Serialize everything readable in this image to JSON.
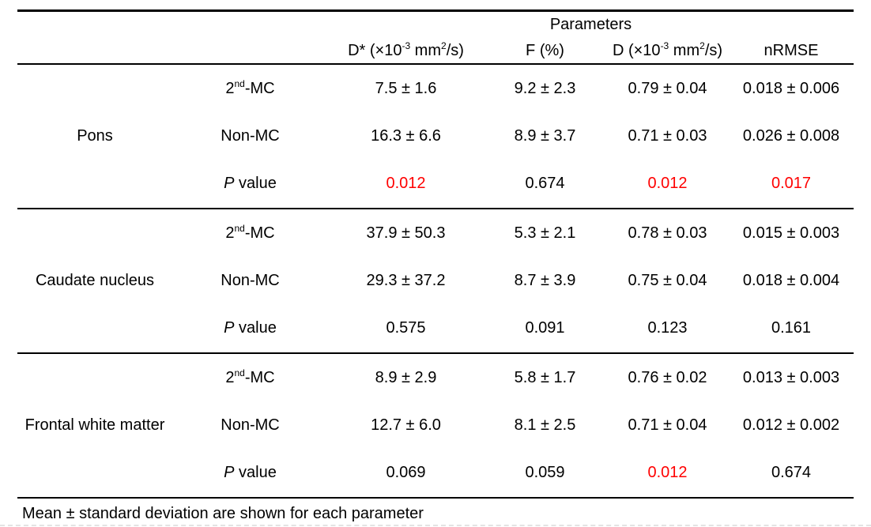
{
  "table": {
    "header": {
      "group_label": "Parameters",
      "columns": [
        {
          "pre": "D* (×10",
          "sup1": "-3",
          "mid": " mm",
          "sup2": "2",
          "post": "/s)"
        },
        {
          "label": "F (%)"
        },
        {
          "pre": "D (×10",
          "sup1": "-3",
          "mid": " mm",
          "sup2": "2",
          "post": "/s)"
        },
        {
          "label": "nRMSE"
        }
      ]
    },
    "groups": [
      {
        "region": "Pons",
        "rows": [
          {
            "label": {
              "base": "2",
              "sup": "nd",
              "post": "-MC"
            },
            "values": [
              "7.5 ± 1.6",
              "9.2 ± 2.3",
              "0.79 ± 0.04",
              "0.018 ± 0.006"
            ],
            "colors": [
              null,
              null,
              null,
              null
            ]
          },
          {
            "label": {
              "base": "Non-MC"
            },
            "values": [
              "16.3 ± 6.6",
              "8.9 ± 3.7",
              "0.71 ± 0.03",
              "0.026 ± 0.008"
            ],
            "colors": [
              null,
              null,
              null,
              null
            ]
          },
          {
            "label": {
              "italic": "P",
              "rest": " value"
            },
            "values": [
              "0.012",
              "0.674",
              "0.012",
              "0.017"
            ],
            "colors": [
              "#ff0000",
              null,
              "#ff0000",
              "#ff0000"
            ]
          }
        ]
      },
      {
        "region": "Caudate nucleus",
        "rows": [
          {
            "label": {
              "base": "2",
              "sup": "nd",
              "post": "-MC"
            },
            "values": [
              "37.9 ± 50.3",
              "5.3 ± 2.1",
              "0.78 ± 0.03",
              "0.015 ± 0.003"
            ],
            "colors": [
              null,
              null,
              null,
              null
            ]
          },
          {
            "label": {
              "base": "Non-MC"
            },
            "values": [
              "29.3 ± 37.2",
              "8.7 ± 3.9",
              "0.75 ± 0.04",
              "0.018 ± 0.004"
            ],
            "colors": [
              null,
              null,
              null,
              null
            ]
          },
          {
            "label": {
              "italic": "P",
              "rest": " value"
            },
            "values": [
              "0.575",
              "0.091",
              "0.123",
              "0.161"
            ],
            "colors": [
              null,
              null,
              null,
              null
            ]
          }
        ]
      },
      {
        "region": "Frontal white matter",
        "rows": [
          {
            "label": {
              "base": "2",
              "sup": "nd",
              "post": "-MC"
            },
            "values": [
              "8.9 ± 2.9",
              "5.8 ± 1.7",
              "0.76 ± 0.02",
              "0.013 ± 0.003"
            ],
            "colors": [
              null,
              null,
              null,
              null
            ]
          },
          {
            "label": {
              "base": "Non-MC"
            },
            "values": [
              "12.7 ± 6.0",
              "8.1 ± 2.5",
              "0.71 ± 0.04",
              "0.012 ± 0.002"
            ],
            "colors": [
              null,
              null,
              null,
              null
            ]
          },
          {
            "label": {
              "italic": "P",
              "rest": " value"
            },
            "values": [
              "0.069",
              "0.059",
              "0.012",
              "0.674"
            ],
            "colors": [
              null,
              null,
              "#ff0000",
              null
            ]
          }
        ]
      }
    ],
    "footnote": "Mean ± standard deviation are shown for each parameter"
  },
  "colors": {
    "significant": "#ff0000",
    "text": "#000000",
    "rule": "#000000"
  }
}
